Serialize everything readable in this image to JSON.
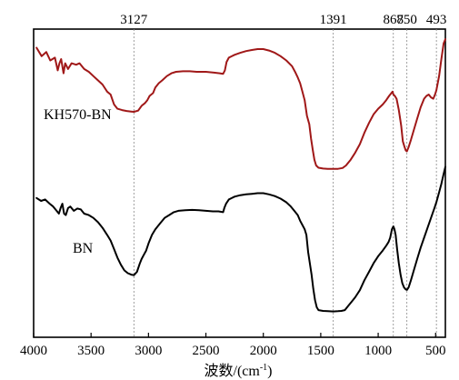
{
  "chart_data": {
    "type": "line",
    "title": "",
    "xlabel": "波数/(cm",
    "xlabel_sup": "-1",
    "xlabel_close": ")",
    "ylabel": "",
    "xlim": [
      4000,
      400
    ],
    "ylim": [
      0,
      1
    ],
    "x_reversed": true,
    "x_ticks": [
      4000,
      3500,
      3000,
      2500,
      2000,
      1500,
      1000,
      500
    ],
    "x_tick_labels": [
      "4000",
      "3500",
      "3000",
      "2500",
      "2000",
      "1500",
      "1000",
      "500"
    ],
    "grid": false,
    "legend": "inline labels beside curves",
    "reference_lines": [
      {
        "x": 3127,
        "label": "3127"
      },
      {
        "x": 1391,
        "label": "1391"
      },
      {
        "x": 868,
        "label": "868"
      },
      {
        "x": 750,
        "label": "750"
      },
      {
        "x": 493,
        "label": "493"
      }
    ],
    "series": [
      {
        "name": "KH570-BN",
        "color": "#a01818",
        "points": [
          [
            3975,
            0.96
          ],
          [
            3930,
            0.93
          ],
          [
            3890,
            0.945
          ],
          [
            3855,
            0.915
          ],
          [
            3815,
            0.925
          ],
          [
            3790,
            0.88
          ],
          [
            3775,
            0.905
          ],
          [
            3760,
            0.92
          ],
          [
            3740,
            0.87
          ],
          [
            3725,
            0.905
          ],
          [
            3700,
            0.885
          ],
          [
            3670,
            0.905
          ],
          [
            3630,
            0.9
          ],
          [
            3600,
            0.905
          ],
          [
            3560,
            0.885
          ],
          [
            3520,
            0.875
          ],
          [
            3480,
            0.86
          ],
          [
            3440,
            0.845
          ],
          [
            3400,
            0.83
          ],
          [
            3360,
            0.805
          ],
          [
            3330,
            0.795
          ],
          [
            3300,
            0.76
          ],
          [
            3270,
            0.745
          ],
          [
            3230,
            0.74
          ],
          [
            3190,
            0.737
          ],
          [
            3150,
            0.735
          ],
          [
            3127,
            0.734
          ],
          [
            3090,
            0.738
          ],
          [
            3060,
            0.755
          ],
          [
            3030,
            0.765
          ],
          [
            3010,
            0.775
          ],
          [
            2990,
            0.79
          ],
          [
            2960,
            0.8
          ],
          [
            2940,
            0.82
          ],
          [
            2910,
            0.835
          ],
          [
            2880,
            0.845
          ],
          [
            2840,
            0.86
          ],
          [
            2800,
            0.87
          ],
          [
            2760,
            0.875
          ],
          [
            2700,
            0.877
          ],
          [
            2640,
            0.877
          ],
          [
            2580,
            0.875
          ],
          [
            2500,
            0.875
          ],
          [
            2430,
            0.872
          ],
          [
            2380,
            0.87
          ],
          [
            2350,
            0.868
          ],
          [
            2335,
            0.88
          ],
          [
            2320,
            0.91
          ],
          [
            2300,
            0.925
          ],
          [
            2250,
            0.935
          ],
          [
            2200,
            0.942
          ],
          [
            2150,
            0.948
          ],
          [
            2100,
            0.952
          ],
          [
            2050,
            0.955
          ],
          [
            2000,
            0.955
          ],
          [
            1950,
            0.95
          ],
          [
            1900,
            0.942
          ],
          [
            1850,
            0.93
          ],
          [
            1800,
            0.915
          ],
          [
            1750,
            0.895
          ],
          [
            1720,
            0.872
          ],
          [
            1700,
            0.855
          ],
          [
            1680,
            0.835
          ],
          [
            1660,
            0.805
          ],
          [
            1640,
            0.775
          ],
          [
            1620,
            0.72
          ],
          [
            1600,
            0.69
          ],
          [
            1585,
            0.64
          ],
          [
            1570,
            0.6
          ],
          [
            1555,
            0.565
          ],
          [
            1540,
            0.545
          ],
          [
            1520,
            0.537
          ],
          [
            1480,
            0.534
          ],
          [
            1440,
            0.533
          ],
          [
            1391,
            0.533
          ],
          [
            1350,
            0.533
          ],
          [
            1310,
            0.536
          ],
          [
            1280,
            0.545
          ],
          [
            1240,
            0.565
          ],
          [
            1200,
            0.59
          ],
          [
            1160,
            0.62
          ],
          [
            1120,
            0.66
          ],
          [
            1080,
            0.695
          ],
          [
            1040,
            0.725
          ],
          [
            1000,
            0.745
          ],
          [
            960,
            0.76
          ],
          [
            930,
            0.775
          ],
          [
            905,
            0.79
          ],
          [
            885,
            0.8
          ],
          [
            875,
            0.805
          ],
          [
            868,
            0.795
          ],
          [
            855,
            0.79
          ],
          [
            840,
            0.78
          ],
          [
            820,
            0.74
          ],
          [
            800,
            0.685
          ],
          [
            785,
            0.63
          ],
          [
            770,
            0.61
          ],
          [
            760,
            0.598
          ],
          [
            750,
            0.595
          ],
          [
            735,
            0.61
          ],
          [
            715,
            0.635
          ],
          [
            690,
            0.67
          ],
          [
            660,
            0.71
          ],
          [
            630,
            0.75
          ],
          [
            600,
            0.78
          ],
          [
            580,
            0.79
          ],
          [
            560,
            0.795
          ],
          [
            540,
            0.785
          ],
          [
            520,
            0.78
          ],
          [
            505,
            0.795
          ],
          [
            493,
            0.81
          ],
          [
            470,
            0.86
          ],
          [
            450,
            0.92
          ],
          [
            430,
            0.975
          ],
          [
            415,
            0.99
          ]
        ]
      },
      {
        "name": "BN",
        "color": "#000000",
        "points": [
          [
            3975,
            0.43
          ],
          [
            3935,
            0.42
          ],
          [
            3900,
            0.425
          ],
          [
            3860,
            0.41
          ],
          [
            3830,
            0.4
          ],
          [
            3800,
            0.385
          ],
          [
            3780,
            0.375
          ],
          [
            3765,
            0.395
          ],
          [
            3750,
            0.41
          ],
          [
            3735,
            0.375
          ],
          [
            3720,
            0.37
          ],
          [
            3700,
            0.395
          ],
          [
            3680,
            0.4
          ],
          [
            3650,
            0.385
          ],
          [
            3620,
            0.393
          ],
          [
            3590,
            0.39
          ],
          [
            3560,
            0.375
          ],
          [
            3520,
            0.37
          ],
          [
            3480,
            0.36
          ],
          [
            3440,
            0.345
          ],
          [
            3400,
            0.325
          ],
          [
            3360,
            0.3
          ],
          [
            3330,
            0.28
          ],
          [
            3300,
            0.25
          ],
          [
            3270,
            0.22
          ],
          [
            3240,
            0.195
          ],
          [
            3210,
            0.175
          ],
          [
            3180,
            0.165
          ],
          [
            3150,
            0.16
          ],
          [
            3127,
            0.158
          ],
          [
            3100,
            0.17
          ],
          [
            3075,
            0.2
          ],
          [
            3060,
            0.215
          ],
          [
            3040,
            0.23
          ],
          [
            3020,
            0.245
          ],
          [
            3000,
            0.27
          ],
          [
            2970,
            0.3
          ],
          [
            2940,
            0.32
          ],
          [
            2900,
            0.34
          ],
          [
            2860,
            0.36
          ],
          [
            2820,
            0.37
          ],
          [
            2780,
            0.38
          ],
          [
            2740,
            0.385
          ],
          [
            2680,
            0.387
          ],
          [
            2620,
            0.388
          ],
          [
            2560,
            0.387
          ],
          [
            2500,
            0.385
          ],
          [
            2440,
            0.383
          ],
          [
            2390,
            0.383
          ],
          [
            2350,
            0.38
          ],
          [
            2340,
            0.395
          ],
          [
            2325,
            0.41
          ],
          [
            2300,
            0.425
          ],
          [
            2250,
            0.435
          ],
          [
            2200,
            0.44
          ],
          [
            2150,
            0.443
          ],
          [
            2100,
            0.445
          ],
          [
            2050,
            0.447
          ],
          [
            2000,
            0.447
          ],
          [
            1950,
            0.443
          ],
          [
            1900,
            0.437
          ],
          [
            1850,
            0.428
          ],
          [
            1800,
            0.415
          ],
          [
            1760,
            0.4
          ],
          [
            1730,
            0.385
          ],
          [
            1700,
            0.37
          ],
          [
            1680,
            0.35
          ],
          [
            1660,
            0.335
          ],
          [
            1640,
            0.32
          ],
          [
            1625,
            0.3
          ],
          [
            1610,
            0.24
          ],
          [
            1595,
            0.2
          ],
          [
            1580,
            0.16
          ],
          [
            1565,
            0.11
          ],
          [
            1550,
            0.07
          ],
          [
            1535,
            0.045
          ],
          [
            1520,
            0.035
          ],
          [
            1480,
            0.032
          ],
          [
            1440,
            0.031
          ],
          [
            1391,
            0.03
          ],
          [
            1350,
            0.031
          ],
          [
            1320,
            0.032
          ],
          [
            1290,
            0.035
          ],
          [
            1260,
            0.05
          ],
          [
            1230,
            0.065
          ],
          [
            1200,
            0.08
          ],
          [
            1160,
            0.105
          ],
          [
            1120,
            0.14
          ],
          [
            1080,
            0.17
          ],
          [
            1040,
            0.2
          ],
          [
            1000,
            0.225
          ],
          [
            960,
            0.245
          ],
          [
            930,
            0.262
          ],
          [
            910,
            0.275
          ],
          [
            895,
            0.29
          ],
          [
            880,
            0.32
          ],
          [
            868,
            0.33
          ],
          [
            858,
            0.32
          ],
          [
            848,
            0.3
          ],
          [
            835,
            0.25
          ],
          [
            820,
            0.2
          ],
          [
            805,
            0.16
          ],
          [
            790,
            0.13
          ],
          [
            775,
            0.115
          ],
          [
            760,
            0.108
          ],
          [
            750,
            0.106
          ],
          [
            735,
            0.115
          ],
          [
            715,
            0.14
          ],
          [
            690,
            0.175
          ],
          [
            660,
            0.215
          ],
          [
            630,
            0.255
          ],
          [
            600,
            0.29
          ],
          [
            570,
            0.325
          ],
          [
            540,
            0.36
          ],
          [
            510,
            0.395
          ],
          [
            493,
            0.415
          ],
          [
            470,
            0.45
          ],
          [
            450,
            0.48
          ],
          [
            430,
            0.515
          ],
          [
            415,
            0.54
          ]
        ]
      }
    ]
  }
}
